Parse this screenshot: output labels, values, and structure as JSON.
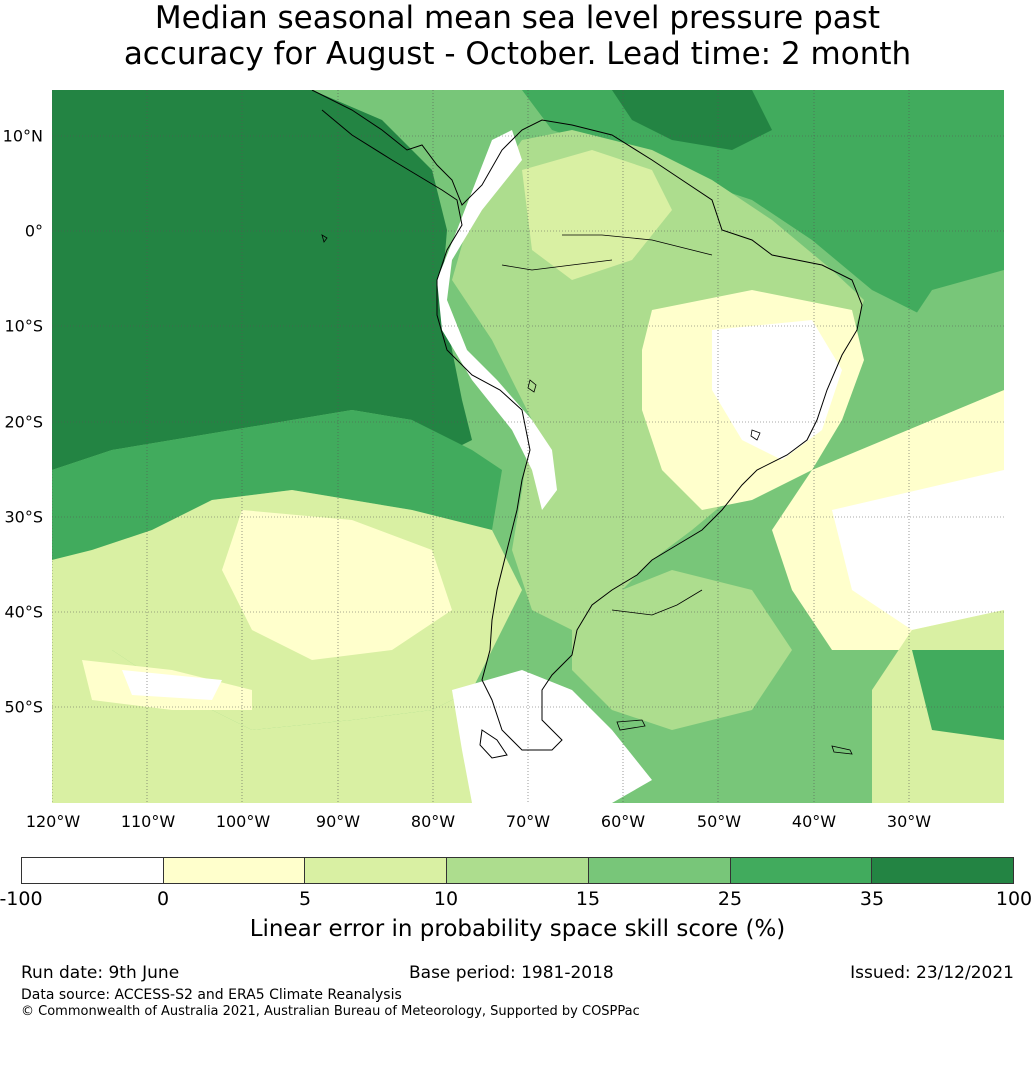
{
  "title": {
    "line1": "Median seasonal mean sea level pressure past",
    "line2": "accuracy for August - October. Lead time: 2 month"
  },
  "map": {
    "lat_labels": [
      "10°N",
      "0°",
      "10°S",
      "20°S",
      "30°S",
      "40°S",
      "50°S"
    ],
    "lon_labels": [
      "120°W",
      "110°W",
      "100°W",
      "90°W",
      "80°W",
      "70°W",
      "60°W",
      "50°W",
      "40°W",
      "30°W"
    ],
    "extent": {
      "lon": [
        -120,
        -20
      ],
      "lat": [
        -60,
        15
      ]
    }
  },
  "colorbar": {
    "ticks": [
      "-100",
      "0",
      "5",
      "10",
      "15",
      "25",
      "35",
      "100"
    ],
    "colors": [
      "#ffffff",
      "#ffffcc",
      "#d9f0a3",
      "#addd8e",
      "#78c679",
      "#41ab5d",
      "#238443"
    ],
    "label": "Linear error in probability space skill score (%)"
  },
  "footer": {
    "run_date": "Run date: 9th June",
    "base_period": "Base period: 1981-2018",
    "issued": "Issued: 23/12/2021",
    "data_source": "Data source: ACCESS-S2 and ERA5 Climate Reanalysis",
    "copyright": "© Commonwealth of Australia 2021, Australian Bureau of Meteorology, Supported by COSPPac"
  }
}
